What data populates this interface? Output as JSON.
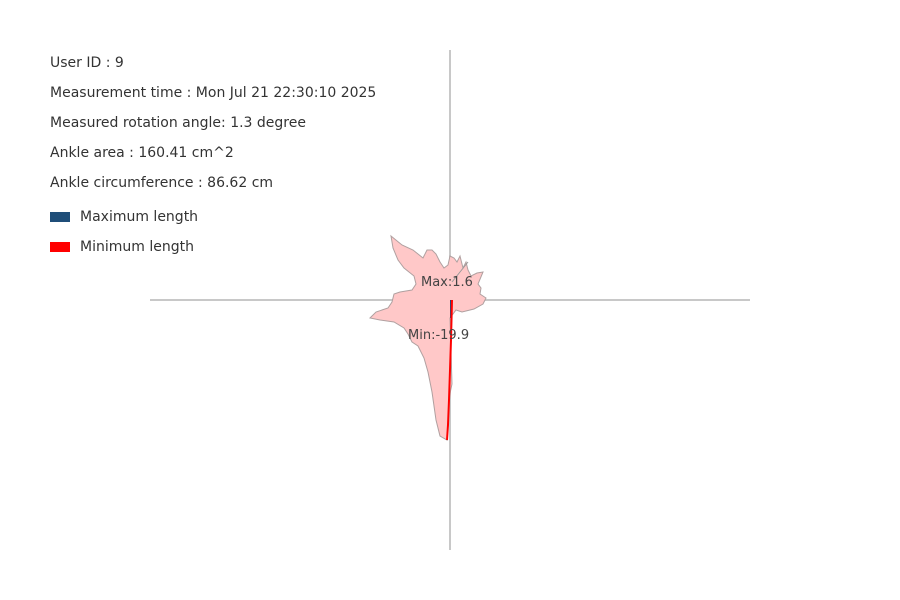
{
  "info": {
    "user_id": "User ID : 9",
    "measurement_time": "Measurement time : Mon Jul 21 22:30:10 2025",
    "rotation_angle": "Measured rotation angle: 1.3 degree",
    "ankle_area": "Ankle area : 160.41 cm^2",
    "ankle_circumference": "Ankle circumference : 86.62 cm"
  },
  "legend": [
    {
      "label": "Maximum length",
      "color": "#1f4e79"
    },
    {
      "label": "Minimum length",
      "color": "#ff0000"
    }
  ],
  "annotations": {
    "max_label": "Max:1.6",
    "min_label": "Min:-19.9"
  },
  "colors": {
    "axis": "#c8c8c8",
    "shape_fill": "#ffc8c8",
    "shape_stroke": "#b0a0a0",
    "max_line": "#1f4e79",
    "min_line": "#ff0000"
  }
}
